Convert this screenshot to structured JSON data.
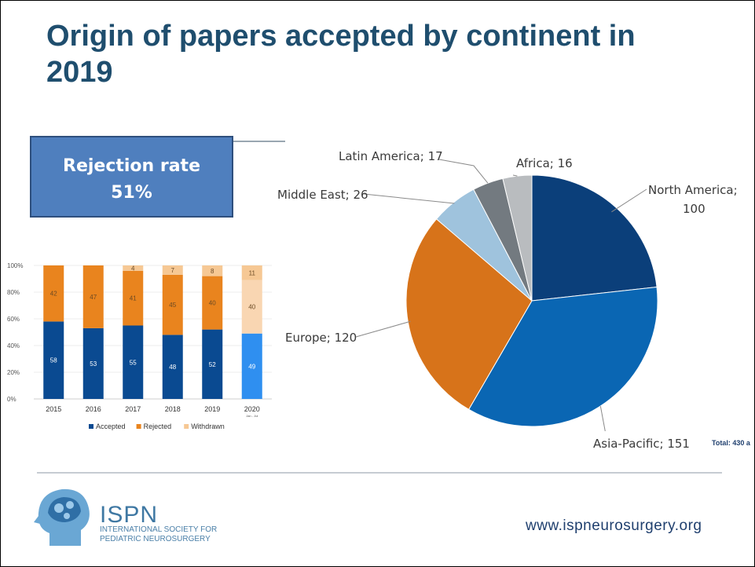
{
  "slide": {
    "title": "Origin of papers accepted by continent in 2019",
    "rejection_box": {
      "label": "Rejection rate",
      "value": "51%"
    },
    "total_note": "Total: 430 a",
    "footer": {
      "org_short": "ISPN",
      "org_line1": "INTERNATIONAL SOCIETY FOR",
      "org_line2": "PEDIATRIC NEUROSURGERY",
      "website": "www.ispneurosurgery.org"
    }
  },
  "colors": {
    "title": "#1f4e6e",
    "accepted": "#0a4a91",
    "rejected": "#e9841e",
    "withdrawn": "#f6c894",
    "accepted_2020": "#2f8ff0",
    "withdrawn_2020": "#f9d6b2"
  },
  "chart_data": [
    {
      "type": "bar",
      "stacked": true,
      "percent": true,
      "categories": [
        "2015",
        "2016",
        "2017",
        "2018",
        "2019",
        "2020"
      ],
      "category_sublabels": [
        "",
        "",
        "",
        "",
        "",
        "Jan - Jul"
      ],
      "series": [
        {
          "name": "Accepted",
          "values": [
            58,
            53,
            55,
            48,
            52,
            49
          ],
          "color": "#0a4a91"
        },
        {
          "name": "Rejected",
          "values": [
            42,
            47,
            41,
            45,
            40,
            null
          ],
          "color": "#e9841e"
        },
        {
          "name": "Withdrawn",
          "values": [
            null,
            null,
            4,
            7,
            8,
            11
          ],
          "color": "#f6c894"
        }
      ],
      "extra_labels": [
        {
          "category": "2020",
          "value": 40
        }
      ],
      "yticks": [
        "0%",
        "20%",
        "40%",
        "60%",
        "80%",
        "100%"
      ],
      "ylim": [
        0,
        100
      ],
      "grid": true,
      "legend": "bottom"
    },
    {
      "type": "pie",
      "slices": [
        {
          "name": "North America",
          "value": 100,
          "color": "#0b3f7a"
        },
        {
          "name": "Asia-Pacific",
          "value": 151,
          "color": "#0a66b3"
        },
        {
          "name": "Europe",
          "value": 120,
          "color": "#d7731a"
        },
        {
          "name": "Middle East",
          "value": 26,
          "color": "#9fc3dd"
        },
        {
          "name": "Latin America",
          "value": 17,
          "color": "#737a80"
        },
        {
          "name": "Africa",
          "value": 16,
          "color": "#b9bcbf"
        }
      ],
      "labels": [
        "North America;",
        "100",
        "Asia-Pacific; 151",
        "Europe; 120",
        "Middle East; 26",
        "Latin America; 17",
        "Africa; 16"
      ]
    }
  ]
}
